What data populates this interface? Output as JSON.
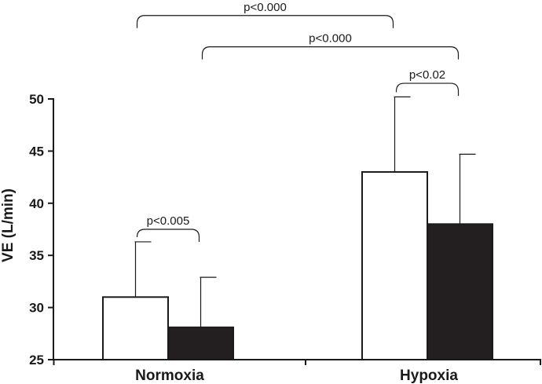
{
  "chart_data": {
    "type": "bar",
    "ylabel": "VE (L/min)",
    "ylim": [
      25,
      50
    ],
    "yticks": [
      "25",
      "30",
      "35",
      "40",
      "45",
      "50"
    ],
    "categories": [
      "Normoxia",
      "Hypoxia"
    ],
    "series": [
      {
        "values": [
          31.0,
          43.0
        ],
        "errors": [
          5.3,
          7.2
        ],
        "color": "#ffffff"
      },
      {
        "values": [
          28.1,
          38.0
        ],
        "errors": [
          4.8,
          6.7
        ],
        "color": "#231f20"
      }
    ],
    "grid": false,
    "legend": false,
    "annotations": [
      {
        "text": "p<0.005",
        "from": [
          0,
          0
        ],
        "to": [
          0,
          1
        ],
        "level": 37.5
      },
      {
        "text": "p<0.02",
        "from": [
          1,
          0
        ],
        "to": [
          1,
          1
        ],
        "level": 51.5
      },
      {
        "text": "p<0.000",
        "from": [
          0,
          1
        ],
        "to": [
          1,
          1
        ],
        "level": 55.0
      },
      {
        "text": "p<0.000",
        "from": [
          0,
          0
        ],
        "to": [
          1,
          0
        ],
        "level": 58.0
      }
    ]
  }
}
